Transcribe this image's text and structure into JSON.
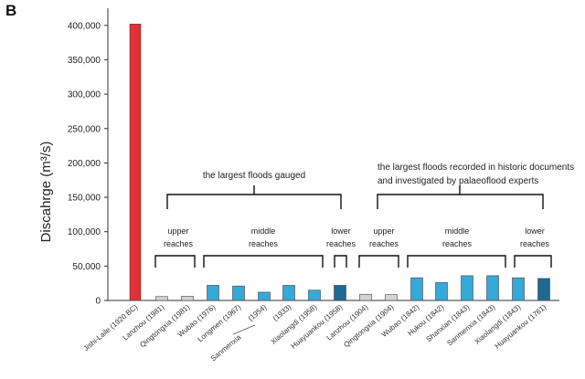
{
  "panel_label": "B",
  "chart_data": {
    "type": "bar",
    "ylabel": "Discahrge (m³/s)",
    "ylim": [
      0,
      425000
    ],
    "yticks": [
      "0",
      "50,000",
      "100,000",
      "150,000",
      "200,000",
      "250,000",
      "300,000",
      "350,000",
      "400,000"
    ],
    "categories": [
      "Jishi-Laile (1920 BC)",
      "Lanzhou (1981)",
      "Qingtongxia (1981)",
      "Wubao (1976)",
      "Longmen (1967)",
      "(1954)",
      "(1933)",
      "Xiaolangdi (1958)",
      "Huayuankou (1958)",
      "Lanzhou (1904)",
      "Qingtongxia (1904)",
      "Wubao (1842)",
      "Hukou (1842)",
      "Shanxian (1843)",
      "Sanmenxia (1843)",
      "Xiaolangdi (1843)",
      "Huayuankou (1761)"
    ],
    "extra_label": "Sanmenxia",
    "values": [
      402000,
      5600,
      6000,
      22000,
      21000,
      12000,
      22000,
      15000,
      22000,
      9000,
      8500,
      33000,
      26000,
      36000,
      36000,
      33000,
      32000
    ],
    "colors": [
      "#e03136",
      "#d4d4d4",
      "#d4d4d4",
      "#35a9d8",
      "#35a9d8",
      "#35a9d8",
      "#35a9d8",
      "#35a9d8",
      "#1e6a92",
      "#d4d4d4",
      "#d4d4d4",
      "#35a9d8",
      "#35a9d8",
      "#35a9d8",
      "#35a9d8",
      "#35a9d8",
      "#1e6a92"
    ],
    "groups": {
      "gauged": "the largest floods gauged",
      "historic_line1": "the largest floods recorded in historic documents",
      "historic_line2": "and investigated by palaeoflood experts"
    },
    "reaches": [
      {
        "line1": "upper",
        "line2": "reaches"
      },
      {
        "line1": "middle",
        "line2": "reaches"
      },
      {
        "line1": "lower",
        "line2": "reaches"
      },
      {
        "line1": "upper",
        "line2": "reaches"
      },
      {
        "line1": "middle",
        "line2": "reaches"
      },
      {
        "line1": "lower",
        "line2": "reaches"
      }
    ]
  }
}
